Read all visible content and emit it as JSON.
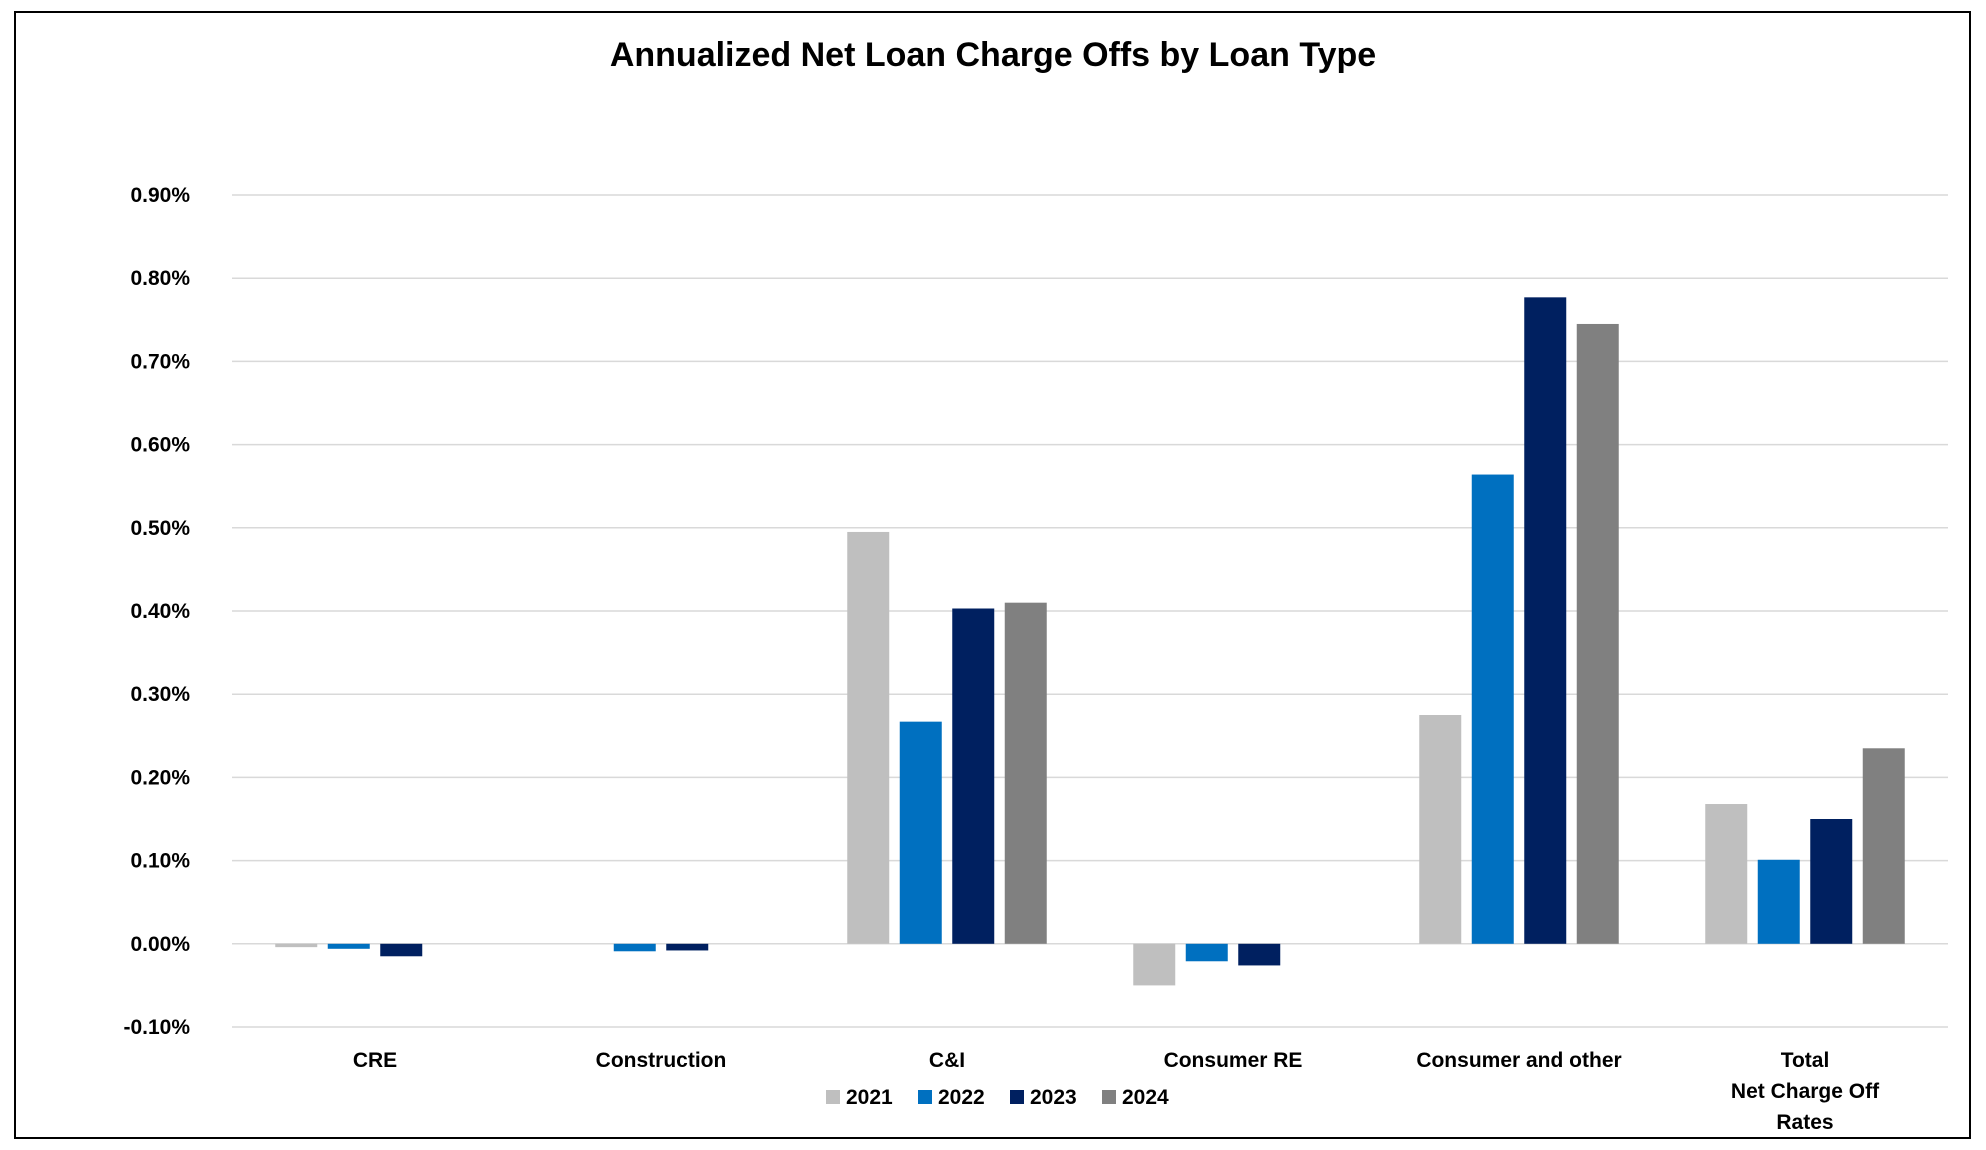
{
  "chart_data": {
    "type": "bar",
    "title": "Annualized Net Loan Charge Offs by Loan Type",
    "categories": [
      [
        "CRE"
      ],
      [
        "Construction"
      ],
      [
        "C&I"
      ],
      [
        "Consumer RE"
      ],
      [
        "Consumer and other"
      ],
      [
        "Total",
        "Net Charge Off",
        "Rates"
      ]
    ],
    "series": [
      {
        "name": "2021",
        "color": "#bfbfbf",
        "values": [
          -0.004,
          0.0,
          0.495,
          -0.05,
          0.275,
          0.168
        ]
      },
      {
        "name": "2022",
        "color": "#0070c0",
        "values": [
          -0.006,
          -0.009,
          0.267,
          -0.021,
          0.564,
          0.101
        ]
      },
      {
        "name": "2023",
        "color": "#002060",
        "values": [
          -0.015,
          -0.008,
          0.403,
          -0.026,
          0.777,
          0.15
        ]
      },
      {
        "name": "2024",
        "color": "#808080",
        "values": [
          0.0,
          0.0,
          0.41,
          0.0,
          0.745,
          0.235
        ]
      }
    ],
    "yticks": [
      "-0.10%",
      "0.00%",
      "0.10%",
      "0.20%",
      "0.30%",
      "0.40%",
      "0.50%",
      "0.60%",
      "0.70%",
      "0.80%",
      "0.90%"
    ],
    "ylim": [
      -0.1,
      0.9
    ],
    "ylabel": "",
    "xlabel": "",
    "grid": true,
    "legend_position": "bottom"
  }
}
